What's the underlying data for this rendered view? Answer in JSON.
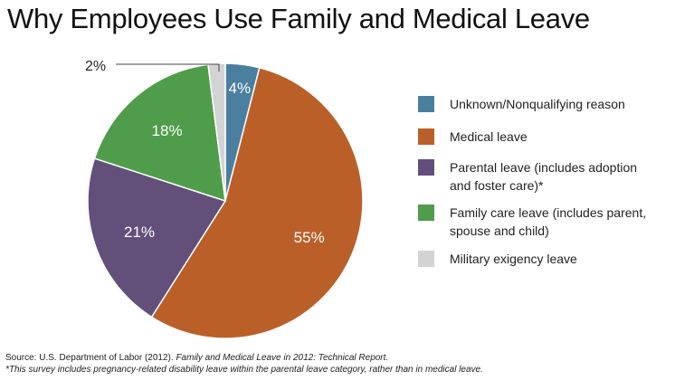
{
  "title": "Why Employees Use Family and Medical Leave",
  "chart_data": {
    "type": "pie",
    "title": "Why Employees Use Family and Medical Leave",
    "start_angle_deg": 0,
    "direction": "clockwise",
    "slices": [
      {
        "label": "Unknown/Nonqualifying reason",
        "value": 4,
        "display": "4%",
        "color": "#4a7fa0"
      },
      {
        "label": "Medical leave",
        "value": 55,
        "display": "55%",
        "color": "#bb5f29"
      },
      {
        "label": "Parental leave (includes adoption and foster care)*",
        "value": 21,
        "display": "21%",
        "color": "#624f7a"
      },
      {
        "label": "Family care leave (includes parent, spouse and child)",
        "value": 18,
        "display": "18%",
        "color": "#4f9d4a"
      },
      {
        "label": "Military exigency leave",
        "value": 2,
        "display": "2%",
        "color": "#d3d3d3"
      }
    ],
    "label_color": "#ffffff",
    "callout_label": "2%"
  },
  "legend": {
    "position": "right",
    "items": [
      {
        "label": "Unknown/Nonqualifying reason",
        "color": "#4a7fa0"
      },
      {
        "label": "Medical leave",
        "color": "#bb5f29"
      },
      {
        "label": "Parental leave (includes adoption and foster care)*",
        "color": "#624f7a"
      },
      {
        "label": "Family care leave (includes parent, spouse and child)",
        "color": "#4f9d4a"
      },
      {
        "label": "Military exigency leave",
        "color": "#d3d3d3"
      }
    ]
  },
  "source": {
    "prefix": "Source: U.S. Department of Labor (2012). ",
    "italic_title": "Family and Medical Leave in 2012: Technical Report.",
    "footnote": "*This survey includes pregnancy-related disability leave within the parental leave category, rather than in medical leave."
  }
}
